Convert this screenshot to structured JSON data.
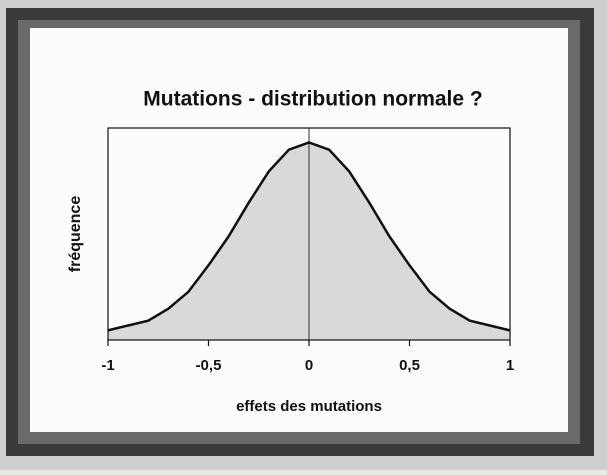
{
  "chart_data": {
    "type": "area",
    "title": "Mutations - distribution normale ?",
    "x_label": "effets des mutations",
    "y_label": "fréquence",
    "x": [
      -1,
      -0.9,
      -0.8,
      -0.7,
      -0.6,
      -0.5,
      -0.4,
      -0.3,
      -0.2,
      -0.1,
      0,
      0.1,
      0.2,
      0.3,
      0.4,
      0.5,
      0.6,
      0.7,
      0.8,
      0.9,
      1
    ],
    "values": [
      0.04,
      0.06,
      0.08,
      0.13,
      0.2,
      0.31,
      0.43,
      0.57,
      0.7,
      0.79,
      0.82,
      0.79,
      0.7,
      0.57,
      0.43,
      0.31,
      0.2,
      0.13,
      0.08,
      0.06,
      0.04
    ],
    "color": "#d9d9d9",
    "line_color": "#111111",
    "xlim": [
      -1,
      1
    ],
    "ylim": [
      0,
      0.88
    ],
    "xticks": [
      -1,
      {
        "value": -0.5,
        "label": "-0,5"
      },
      0,
      {
        "value": 0.5,
        "label": "0,5"
      },
      1
    ]
  }
}
